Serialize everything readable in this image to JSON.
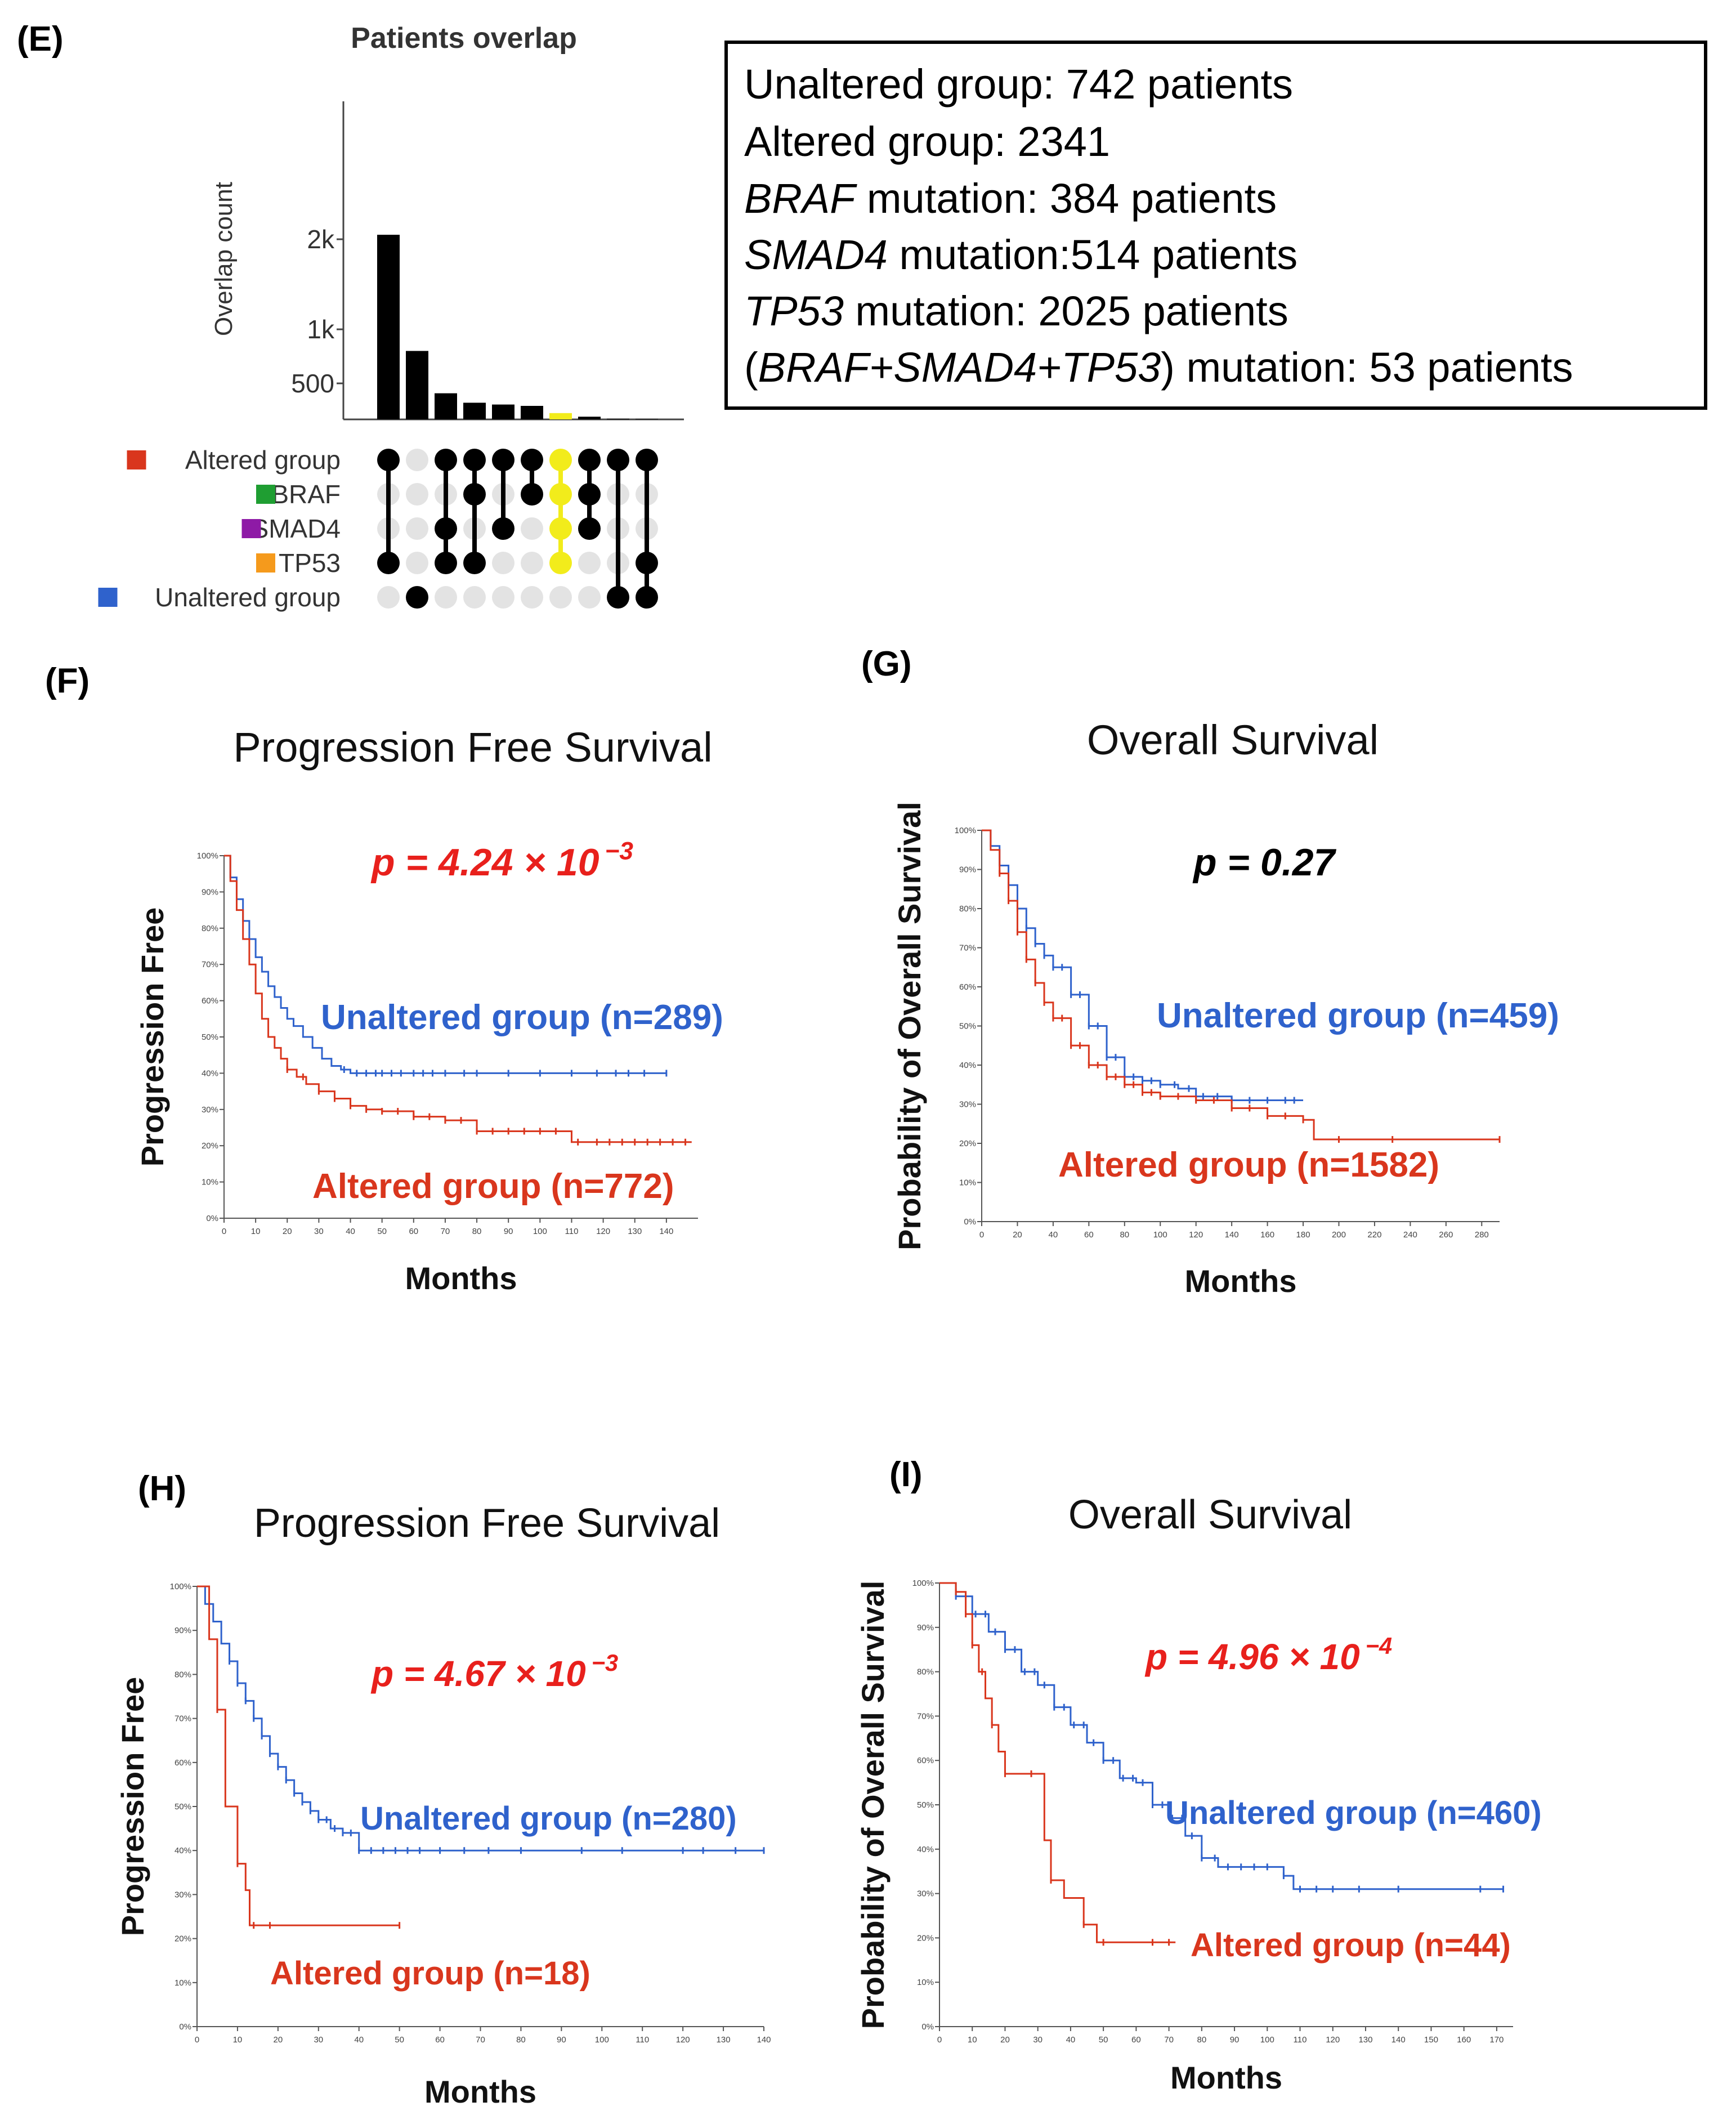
{
  "colors": {
    "altered": "#d9361d",
    "unaltered": "#2f62cc",
    "braf": "#1f9e32",
    "smad4": "#8e1aa6",
    "tp53": "#f59a1c",
    "highlight": "#f2ec1b",
    "p_red": "#e8201c",
    "p_black": "#000000"
  },
  "panel_e": {
    "letter": "(E)",
    "title": "Patients overlap",
    "ylabel": "Overlap count",
    "yticks": [
      "2k",
      "1k",
      "500"
    ],
    "sets": [
      {
        "label": "Altered group",
        "color": "#d9361d"
      },
      {
        "label": "BRAF",
        "color": "#1f9e32"
      },
      {
        "label": "SMAD4",
        "color": "#8e1aa6"
      },
      {
        "label": "TP53",
        "color": "#f59a1c"
      },
      {
        "label": "Unaltered group",
        "color": "#2f62cc"
      }
    ],
    "bars": [
      2050,
      760,
      290,
      185,
      165,
      150,
      70,
      30,
      8,
      5
    ],
    "highlight_index": 6,
    "membership": [
      [
        0,
        3
      ],
      [
        4
      ],
      [
        0,
        2,
        3
      ],
      [
        0,
        1,
        3
      ],
      [
        0,
        2
      ],
      [
        0,
        1
      ],
      [
        0,
        1,
        2,
        3
      ],
      [
        0,
        1,
        2
      ],
      [
        0,
        4
      ],
      [
        0,
        3,
        4
      ]
    ]
  },
  "summary": {
    "line1": "Unaltered group: 742 patients",
    "line2": "Altered group: 2341",
    "line3_gene": "BRAF",
    "line3_rest": " mutation: 384 patients",
    "line4_gene": "SMAD4",
    "line4_rest": " mutation:514 patients",
    "line5_gene": "TP53",
    "line5_rest": " mutation: 2025 patients",
    "line6_open": "(",
    "line6_genes": "BRAF+SMAD4+TP53",
    "line6_rest": ") mutation: 53 patients"
  },
  "chart_data": [
    {
      "type": "line",
      "id": "F",
      "letter": "(F)",
      "title": "Progression Free Survival",
      "xlabel": "Months",
      "ylabel": "Progression Free",
      "xlim": [
        0,
        150
      ],
      "xticks": [
        0,
        10,
        20,
        30,
        40,
        50,
        60,
        70,
        80,
        90,
        100,
        110,
        120,
        130,
        140
      ],
      "ylim": [
        0,
        100
      ],
      "yticks": [
        0,
        10,
        20,
        30,
        40,
        50,
        60,
        70,
        80,
        90,
        100
      ],
      "p_base": "p = 4.24 × 10",
      "p_exp": "−3",
      "p_color": "#e8201c",
      "series": [
        {
          "name": "Unaltered group (n=289)",
          "color": "#2f62cc",
          "x": [
            0,
            2,
            4,
            6,
            8,
            10,
            12,
            14,
            16,
            18,
            20,
            22,
            25,
            28,
            31,
            34,
            37,
            40,
            45,
            50,
            60,
            80,
            100,
            120,
            140
          ],
          "y": [
            100,
            94,
            88,
            82,
            77,
            72,
            68,
            64,
            61,
            58,
            55,
            53,
            50,
            47,
            44,
            42,
            41,
            40,
            40,
            40,
            40,
            40,
            40,
            40,
            40
          ],
          "censor_x": [
            38,
            42,
            45,
            48,
            50,
            53,
            56,
            60,
            63,
            66,
            70,
            76,
            80,
            90,
            100,
            110,
            118,
            124,
            128,
            133,
            140
          ]
        },
        {
          "name": "Altered group (n=772)",
          "color": "#d9361d",
          "x": [
            0,
            2,
            4,
            6,
            8,
            10,
            12,
            14,
            16,
            18,
            20,
            23,
            26,
            30,
            35,
            40,
            45,
            50,
            60,
            70,
            80,
            90,
            100,
            110,
            120,
            130,
            140,
            148
          ],
          "y": [
            100,
            93,
            85,
            77,
            70,
            62,
            55,
            50,
            47,
            44,
            41,
            39,
            37,
            35,
            33,
            31,
            30,
            29.5,
            28,
            27,
            24,
            24,
            24,
            21,
            21,
            21,
            21,
            21
          ],
          "censor_x": [
            20,
            25,
            30,
            35,
            40,
            45,
            50,
            55,
            60,
            65,
            70,
            75,
            80,
            85,
            90,
            95,
            100,
            105,
            112,
            118,
            122,
            126,
            130,
            134,
            138,
            142,
            146
          ]
        }
      ]
    },
    {
      "type": "line",
      "id": "G",
      "letter": "(G)",
      "title": "Overall Survival",
      "xlabel": "Months",
      "ylabel": "Probability of Overall Survival",
      "xlim": [
        0,
        290
      ],
      "xticks": [
        0,
        20,
        40,
        60,
        80,
        100,
        120,
        140,
        160,
        180,
        200,
        220,
        240,
        260,
        280
      ],
      "ylim": [
        0,
        100
      ],
      "yticks": [
        0,
        10,
        20,
        30,
        40,
        50,
        60,
        70,
        80,
        90,
        100
      ],
      "p_base": "p = 0.27",
      "p_exp": "",
      "p_color": "#000000",
      "series": [
        {
          "name": "Unaltered group (n=459)",
          "color": "#2f62cc",
          "x": [
            0,
            5,
            10,
            15,
            20,
            25,
            30,
            35,
            40,
            50,
            60,
            70,
            80,
            90,
            100,
            110,
            120,
            140,
            160,
            175,
            180
          ],
          "y": [
            100,
            96,
            91,
            86,
            80,
            75,
            71,
            68,
            65,
            58,
            50,
            42,
            37,
            36,
            35,
            34,
            32,
            31,
            31,
            31,
            31
          ],
          "censor_x": [
            15,
            20,
            25,
            30,
            35,
            40,
            45,
            50,
            55,
            60,
            65,
            70,
            75,
            80,
            85,
            90,
            95,
            100,
            108,
            116,
            124,
            132,
            140,
            150,
            160,
            170,
            175
          ]
        },
        {
          "name": "Altered group (n=1582)",
          "color": "#d9361d",
          "x": [
            0,
            5,
            10,
            15,
            20,
            25,
            30,
            35,
            40,
            50,
            60,
            70,
            80,
            90,
            100,
            110,
            120,
            140,
            160,
            180,
            186,
            200,
            240,
            290
          ],
          "y": [
            100,
            95,
            89,
            82,
            74,
            67,
            61,
            56,
            52,
            45,
            40,
            37,
            35,
            33,
            32,
            32,
            31,
            29,
            27,
            26,
            21,
            21,
            21,
            21
          ],
          "censor_x": [
            10,
            15,
            20,
            25,
            30,
            35,
            40,
            45,
            50,
            55,
            60,
            65,
            70,
            75,
            80,
            85,
            90,
            95,
            100,
            110,
            120,
            130,
            140,
            150,
            160,
            170,
            180,
            200,
            230,
            290
          ]
        }
      ]
    },
    {
      "type": "line",
      "id": "H",
      "letter": "(H)",
      "title": "Progression Free Survival",
      "xlabel": "Months",
      "ylabel": "Progression Free",
      "xlim": [
        0,
        140
      ],
      "xticks": [
        0,
        10,
        20,
        30,
        40,
        50,
        60,
        70,
        80,
        90,
        100,
        110,
        120,
        130,
        140
      ],
      "ylim": [
        0,
        100
      ],
      "yticks": [
        0,
        10,
        20,
        30,
        40,
        50,
        60,
        70,
        80,
        90,
        100
      ],
      "p_base": "p = 4.67 × 10",
      "p_exp": "−3",
      "p_color": "#e8201c",
      "series": [
        {
          "name": "Unaltered group (n=280)",
          "color": "#2f62cc",
          "x": [
            0,
            2,
            4,
            6,
            8,
            10,
            12,
            14,
            16,
            18,
            20,
            22,
            24,
            26,
            28,
            30,
            33,
            36,
            40,
            45,
            50,
            60,
            80,
            100,
            120,
            140
          ],
          "y": [
            100,
            96,
            92,
            87,
            83,
            78,
            74,
            70,
            66,
            62,
            59,
            56,
            53,
            51,
            49,
            47,
            45,
            44,
            40,
            40,
            40,
            40,
            40,
            40,
            40,
            40
          ],
          "censor_x": [
            8,
            10,
            12,
            14,
            16,
            18,
            20,
            22,
            24,
            26,
            28,
            30,
            32,
            34,
            36,
            38,
            40,
            43,
            46,
            49,
            52,
            55,
            60,
            66,
            72,
            80,
            95,
            105,
            120,
            125,
            133,
            140
          ]
        },
        {
          "name": "Altered group (n=18)",
          "color": "#d9361d",
          "x": [
            0,
            3,
            5,
            7,
            10,
            12,
            13,
            50
          ],
          "y": [
            100,
            88,
            72,
            50,
            37,
            31,
            23,
            23
          ],
          "censor_x": [
            5,
            10,
            14,
            18,
            50
          ]
        }
      ]
    },
    {
      "type": "line",
      "id": "I",
      "letter": "(I)",
      "title": "Overall Survival",
      "xlabel": "Months",
      "ylabel": "Probability of Overall Survival",
      "xlim": [
        0,
        175
      ],
      "xticks": [
        0,
        10,
        20,
        30,
        40,
        50,
        60,
        70,
        80,
        90,
        100,
        110,
        120,
        130,
        140,
        150,
        160,
        170
      ],
      "ylim": [
        0,
        100
      ],
      "yticks": [
        0,
        10,
        20,
        30,
        40,
        50,
        60,
        70,
        80,
        90,
        100
      ],
      "p_base": "p = 4.96 × 10",
      "p_exp": "−4",
      "p_color": "#e8201c",
      "series": [
        {
          "name": "Unaltered group (n=460)",
          "color": "#2f62cc",
          "x": [
            0,
            5,
            10,
            15,
            20,
            25,
            30,
            35,
            40,
            45,
            50,
            55,
            60,
            65,
            70,
            75,
            80,
            85,
            100,
            105,
            108,
            140,
            150,
            172
          ],
          "y": [
            100,
            97,
            93,
            89,
            85,
            80,
            77,
            72,
            68,
            64,
            60,
            56,
            55,
            50,
            47,
            43,
            38,
            36,
            36,
            34,
            31,
            31,
            31,
            31
          ],
          "censor_x": [
            5,
            8,
            11,
            14,
            17,
            20,
            23,
            26,
            29,
            32,
            35,
            38,
            41,
            44,
            47,
            50,
            53,
            56,
            59,
            62,
            65,
            68,
            71,
            74,
            77,
            80,
            84,
            88,
            92,
            96,
            100,
            105,
            110,
            115,
            120,
            128,
            140,
            165,
            172
          ]
        },
        {
          "name": "Altered group (n=44)",
          "color": "#d9361d",
          "x": [
            0,
            5,
            8,
            10,
            12,
            14,
            16,
            18,
            20,
            28,
            32,
            34,
            38,
            44,
            48,
            52,
            72
          ],
          "y": [
            100,
            98,
            93,
            86,
            80,
            74,
            68,
            62,
            57,
            57,
            42,
            33,
            29,
            23,
            19,
            19,
            19
          ],
          "censor_x": [
            5,
            8,
            10,
            13,
            16,
            20,
            28,
            34,
            44,
            50,
            65,
            70
          ]
        }
      ]
    }
  ]
}
